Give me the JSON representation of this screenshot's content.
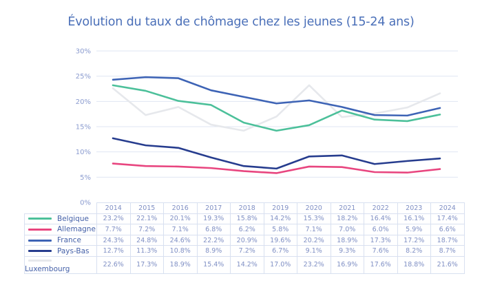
{
  "chart_data": {
    "type": "line",
    "title": "Évolution du taux de chômage chez les jeunes (15-24 ans)",
    "xlabel": "",
    "ylabel": "",
    "ylim": [
      0,
      30
    ],
    "yticks": [
      "0%",
      "5%",
      "10%",
      "15%",
      "20%",
      "25%",
      "30%"
    ],
    "ytick_values": [
      0,
      5,
      10,
      15,
      20,
      25,
      30
    ],
    "grid": true,
    "legend": "bottom-table",
    "categories": [
      "2014",
      "2015",
      "2016",
      "2017",
      "2018",
      "2019",
      "2020",
      "2021",
      "2022",
      "2023",
      "2024"
    ],
    "series": [
      {
        "name": "Belgique",
        "color": "#4cc09a",
        "values": [
          23.2,
          22.1,
          20.1,
          19.3,
          15.8,
          14.2,
          15.3,
          18.2,
          16.4,
          16.1,
          17.4
        ],
        "labels": [
          "23.2%",
          "22.1%",
          "20.1%",
          "19.3%",
          "15.8%",
          "14.2%",
          "15.3%",
          "18.2%",
          "16.4%",
          "16.1%",
          "17.4%"
        ]
      },
      {
        "name": "Allemagne",
        "color": "#e8457f",
        "values": [
          7.7,
          7.2,
          7.1,
          6.8,
          6.2,
          5.8,
          7.1,
          7.0,
          6.0,
          5.9,
          6.6
        ],
        "labels": [
          "7.7%",
          "7.2%",
          "7.1%",
          "6.8%",
          "6.2%",
          "5.8%",
          "7.1%",
          "7.0%",
          "6.0%",
          "5.9%",
          "6.6%"
        ]
      },
      {
        "name": "France",
        "color": "#3d63b5",
        "values": [
          24.3,
          24.8,
          24.6,
          22.2,
          20.9,
          19.6,
          20.2,
          18.9,
          17.3,
          17.2,
          18.7
        ],
        "labels": [
          "24.3%",
          "24.8%",
          "24.6%",
          "22.2%",
          "20.9%",
          "19.6%",
          "20.2%",
          "18.9%",
          "17.3%",
          "17.2%",
          "18.7%"
        ]
      },
      {
        "name": "Pays-Bas",
        "color": "#263c8e",
        "values": [
          12.7,
          11.3,
          10.8,
          8.9,
          7.2,
          6.7,
          9.1,
          9.3,
          7.6,
          8.2,
          8.7
        ],
        "labels": [
          "12.7%",
          "11.3%",
          "10.8%",
          "8.9%",
          "7.2%",
          "6.7%",
          "9.1%",
          "9.3%",
          "7.6%",
          "8.2%",
          "8.7%"
        ]
      },
      {
        "name": "Luxembourg",
        "color": "#e6e8ec",
        "values": [
          22.6,
          17.3,
          18.9,
          15.4,
          14.2,
          17.0,
          23.2,
          16.9,
          17.6,
          18.8,
          21.6
        ],
        "labels": [
          "22.6%",
          "17.3%",
          "18.9%",
          "15.4%",
          "14.2%",
          "17.0%",
          "23.2%",
          "16.9%",
          "17.6%",
          "18.8%",
          "21.6%"
        ]
      }
    ]
  }
}
